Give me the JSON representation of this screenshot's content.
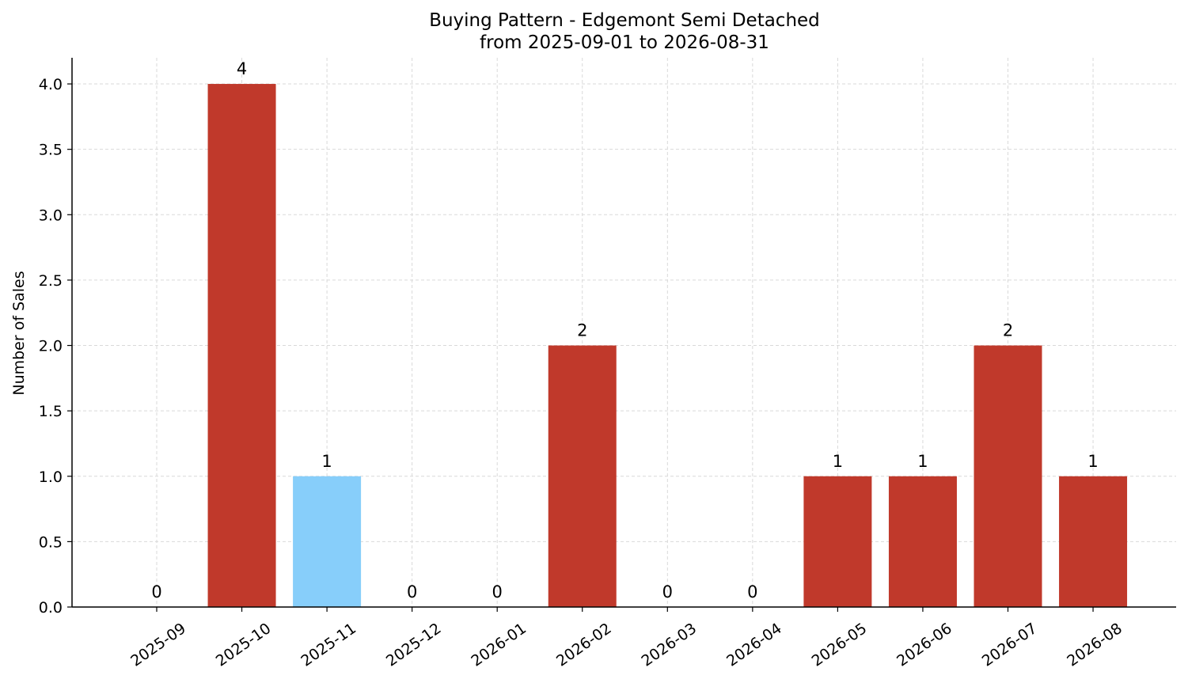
{
  "chart_data": {
    "type": "bar",
    "title": "Buying Pattern - Edgemont Semi Detached",
    "subtitle": "from 2025-09-01 to 2026-08-31",
    "xlabel": "",
    "ylabel": "Number of Sales",
    "categories": [
      "2025-09",
      "2025-10",
      "2025-11",
      "2025-12",
      "2026-01",
      "2026-02",
      "2026-03",
      "2026-04",
      "2026-05",
      "2026-06",
      "2026-07",
      "2026-08"
    ],
    "values": [
      0,
      4,
      1,
      0,
      0,
      2,
      0,
      0,
      1,
      1,
      2,
      1
    ],
    "bar_colors": [
      "#c0392b",
      "#c0392b",
      "#87cefa",
      "#c0392b",
      "#c0392b",
      "#c0392b",
      "#c0392b",
      "#c0392b",
      "#c0392b",
      "#c0392b",
      "#c0392b",
      "#c0392b"
    ],
    "data_labels": [
      "0",
      "4",
      "1",
      "0",
      "0",
      "2",
      "0",
      "0",
      "1",
      "1",
      "2",
      "1"
    ],
    "ylim": [
      0,
      4.2
    ],
    "yticks": [
      0.0,
      0.5,
      1.0,
      1.5,
      2.0,
      2.5,
      3.0,
      3.5,
      4.0
    ],
    "ytick_labels": [
      "0.0",
      "0.5",
      "1.0",
      "1.5",
      "2.0",
      "2.5",
      "3.0",
      "3.5",
      "4.0"
    ],
    "grid": true,
    "grid_color": "#d9d9d9"
  }
}
